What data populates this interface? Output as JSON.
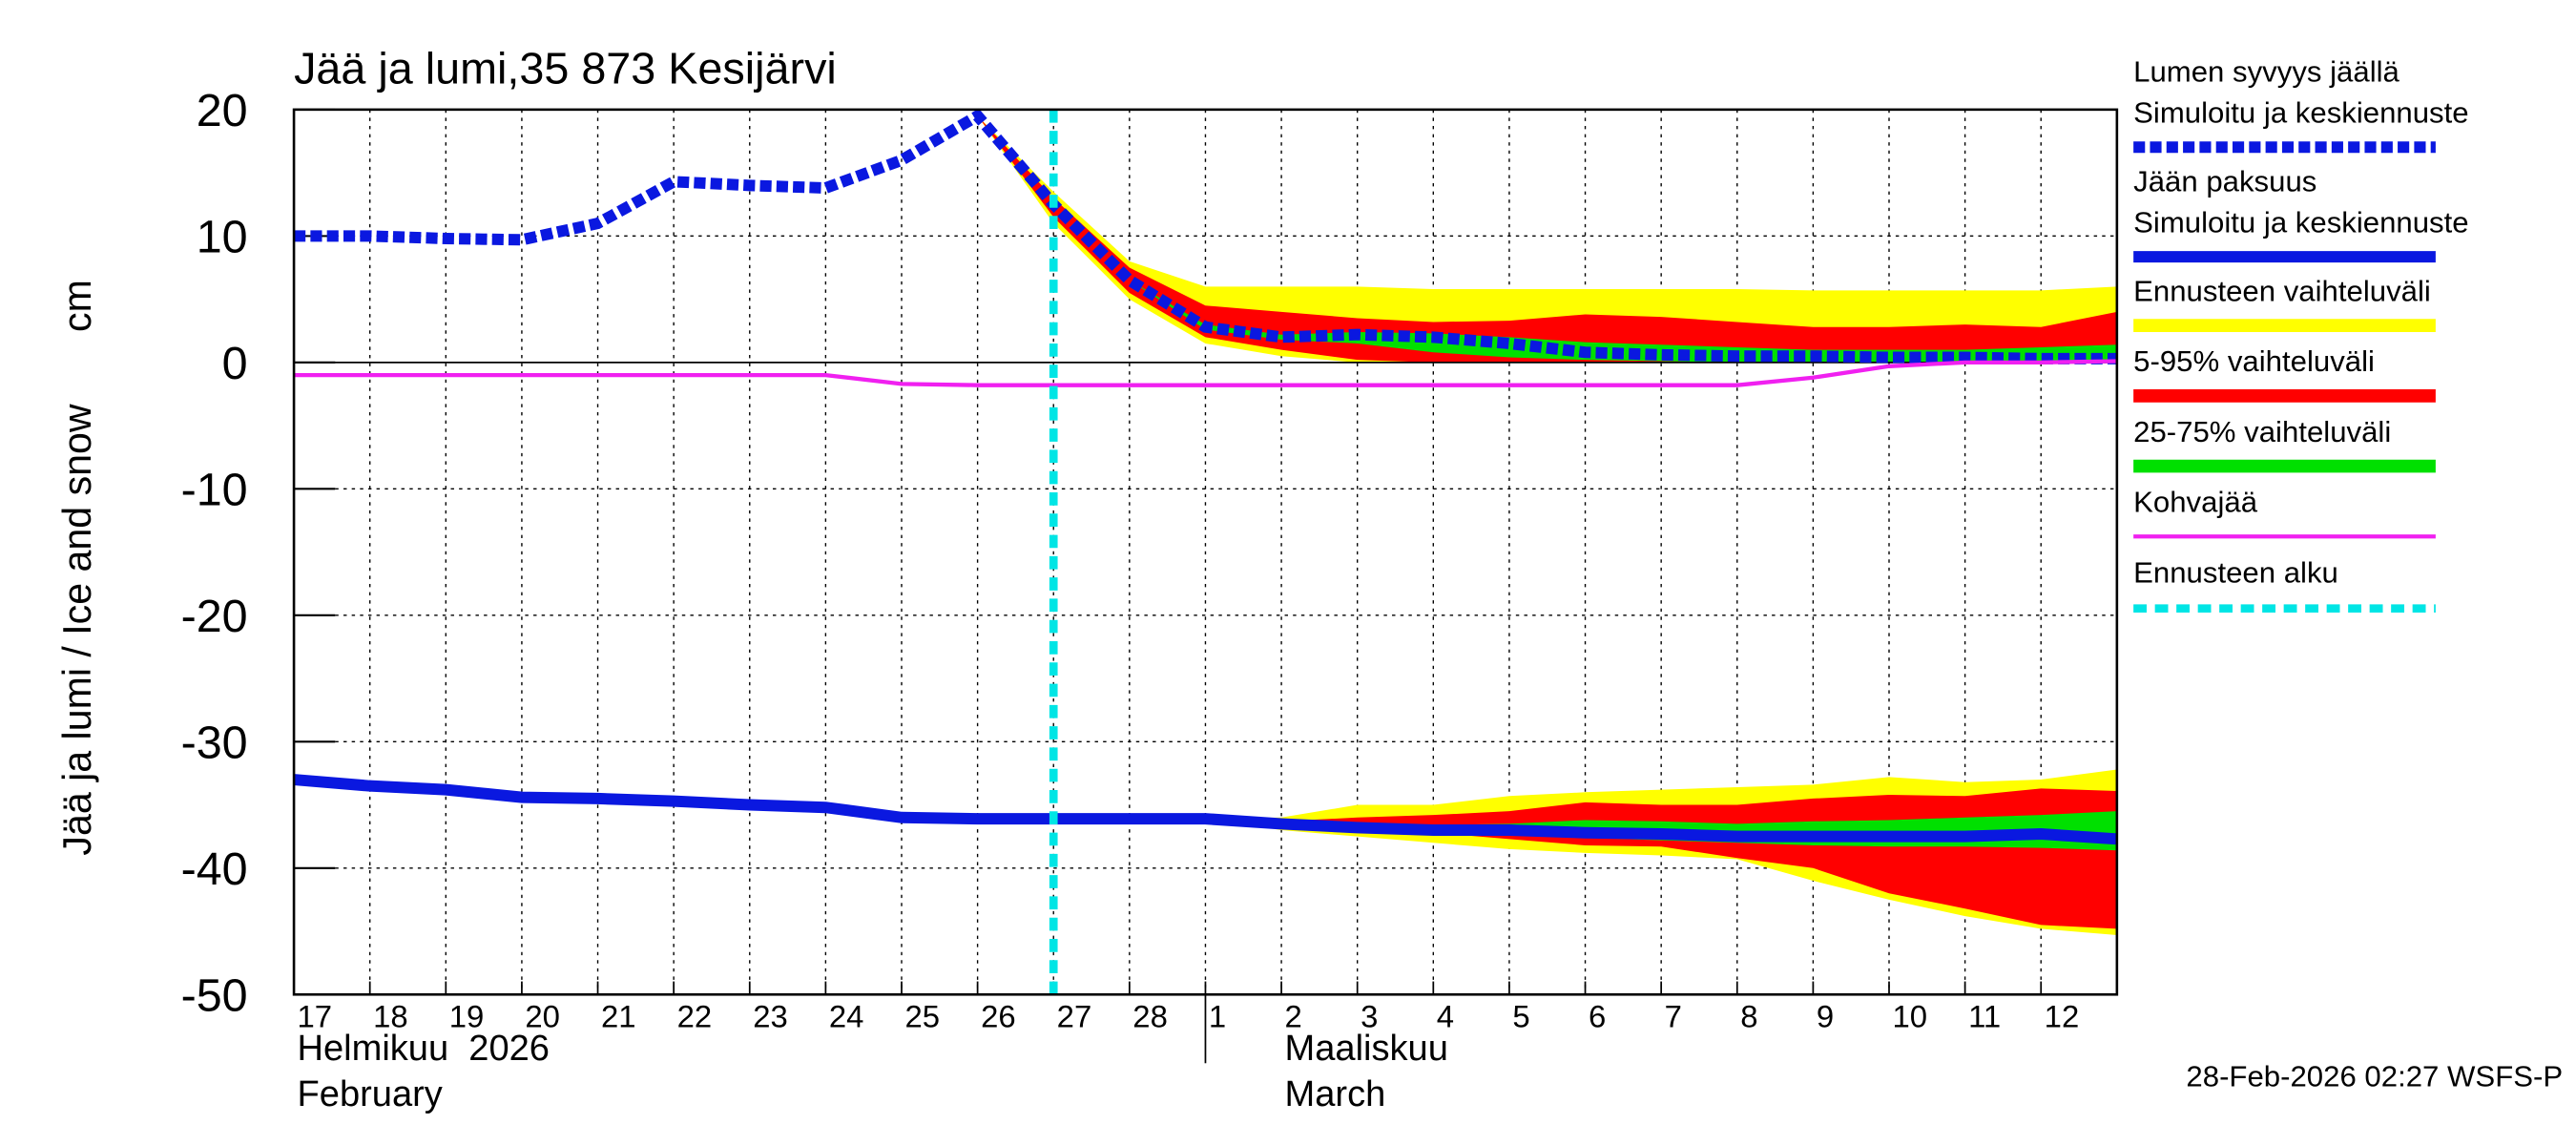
{
  "chart_data": {
    "type": "line",
    "title": "Jää ja lumi,35 873 Kesijärvi",
    "y_label": "Jää ja lumi / Ice and snow",
    "y_unit": "cm",
    "month_labels": [
      "Helmikuu  2026",
      "February",
      "Maaliskuu",
      "March"
    ],
    "footer": "28-Feb-2026 02:27 WSFS-P",
    "categories": [
      "17",
      "18",
      "19",
      "20",
      "21",
      "22",
      "23",
      "24",
      "25",
      "26",
      "27",
      "28",
      "1",
      "2",
      "3",
      "4",
      "5",
      "6",
      "7",
      "8",
      "9",
      "10",
      "11",
      "12",
      null
    ],
    "ylim": [
      -50,
      20
    ],
    "yticks": [
      20,
      10,
      0,
      -10,
      -20,
      -30,
      -40,
      -50
    ],
    "grid": true,
    "series": [
      {
        "name": "Lumen syvyys jäällä",
        "subname": "Simuloitu ja keskiennuste",
        "color": "#0a18e0",
        "dash": true,
        "values": [
          10,
          10,
          9.8,
          9.7,
          11,
          14.3,
          14,
          13.8,
          16,
          19.5,
          12.5,
          6.5,
          2.8,
          2,
          2.2,
          2,
          1.5,
          0.8,
          0.6,
          0.5,
          0.5,
          0.4,
          0.4,
          0.3,
          0.3
        ]
      },
      {
        "name": "Jään paksuus",
        "subname": "Simuloitu ja keskiennuste",
        "color": "#0a18e0",
        "dash": false,
        "values": [
          -33,
          -33.5,
          -33.8,
          -34.4,
          -34.5,
          -34.7,
          -35,
          -35.2,
          -36,
          -36.1,
          -36.1,
          -36.1,
          -36.1,
          -36.5,
          -36.8,
          -37,
          -37,
          -37.2,
          -37.3,
          -37.5,
          -37.5,
          -37.5,
          -37.5,
          -37.3,
          -37.7
        ]
      },
      {
        "name": "Kohvajää",
        "color": "#f020f0",
        "dash": false,
        "thin": true,
        "values": [
          -1,
          -1,
          -1,
          -1,
          -1,
          -1,
          -1,
          -1,
          -1.7,
          -1.8,
          -1.8,
          -1.8,
          -1.8,
          -1.8,
          -1.8,
          -1.8,
          -1.8,
          -1.8,
          -1.8,
          -1.8,
          -1.2,
          -0.3,
          0,
          0,
          0.1
        ]
      }
    ],
    "bands": [
      {
        "name": "Ennusteen vaihteluväli",
        "color": "#ffff00",
        "snow_high": [
          null,
          null,
          null,
          null,
          null,
          null,
          null,
          null,
          null,
          19.5,
          13.5,
          8,
          6,
          6,
          6,
          5.8,
          5.8,
          5.8,
          5.8,
          5.8,
          5.7,
          5.7,
          5.7,
          5.7,
          6
        ],
        "snow_low": [
          null,
          null,
          null,
          null,
          null,
          null,
          null,
          null,
          null,
          19.5,
          11,
          5,
          1.5,
          0.5,
          0,
          0,
          0,
          0,
          0,
          0,
          0,
          0,
          0,
          0,
          0
        ],
        "ice_high": [
          null,
          null,
          null,
          null,
          null,
          null,
          null,
          null,
          null,
          null,
          null,
          null,
          -36.1,
          -36,
          -35,
          -35,
          -34.3,
          -34,
          -33.8,
          -33.6,
          -33.4,
          -32.8,
          -33.2,
          -33,
          -32.2
        ],
        "ice_low": [
          null,
          null,
          null,
          null,
          null,
          null,
          null,
          null,
          null,
          null,
          null,
          null,
          -36.1,
          -37,
          -37.5,
          -38,
          -38.5,
          -38.8,
          -39,
          -39.3,
          -41,
          -42.5,
          -43.8,
          -44.8,
          -45.3
        ]
      },
      {
        "name": "5-95% vaihteluväli",
        "color": "#ff0000",
        "snow_high": [
          null,
          null,
          null,
          null,
          null,
          null,
          null,
          null,
          null,
          19.5,
          13,
          7.5,
          4.5,
          4,
          3.5,
          3.2,
          3.3,
          3.8,
          3.6,
          3.2,
          2.8,
          2.8,
          3,
          2.8,
          4
        ],
        "snow_low": [
          null,
          null,
          null,
          null,
          null,
          null,
          null,
          null,
          null,
          19.5,
          11.5,
          5.5,
          2,
          1,
          0.2,
          0,
          0,
          0,
          0,
          0,
          0,
          0,
          0,
          0,
          0
        ],
        "ice_high": [
          null,
          null,
          null,
          null,
          null,
          null,
          null,
          null,
          null,
          null,
          null,
          null,
          -36.1,
          -36.3,
          -36,
          -35.8,
          -35.5,
          -34.8,
          -35,
          -35,
          -34.5,
          -34.2,
          -34.3,
          -33.7,
          -33.9
        ],
        "ice_low": [
          null,
          null,
          null,
          null,
          null,
          null,
          null,
          null,
          null,
          null,
          null,
          null,
          -36.1,
          -36.6,
          -37,
          -37.2,
          -37.7,
          -38.2,
          -38.3,
          -39.2,
          -40,
          -42,
          -43.2,
          -44.5,
          -44.8
        ]
      },
      {
        "name": "25-75% vaihteluväli",
        "color": "#00e000",
        "snow_high": [
          null,
          null,
          null,
          null,
          null,
          null,
          null,
          null,
          null,
          19.5,
          12.5,
          6.5,
          3,
          2.2,
          2.4,
          2.3,
          2,
          1.6,
          1.4,
          1.2,
          1,
          1,
          1,
          1.2,
          1.4
        ],
        "snow_low": [
          null,
          null,
          null,
          null,
          null,
          null,
          null,
          null,
          null,
          19.5,
          12.5,
          6.5,
          2.6,
          1.8,
          1.5,
          0.8,
          0.4,
          0.2,
          0.1,
          0,
          0,
          0,
          0,
          0,
          0
        ],
        "ice_high": [
          null,
          null,
          null,
          null,
          null,
          null,
          null,
          null,
          null,
          null,
          null,
          null,
          -36.1,
          -36.3,
          -36.5,
          -36.6,
          -36.5,
          -36.2,
          -36.3,
          -36.5,
          -36.3,
          -36.2,
          -36,
          -35.8,
          -35.5
        ],
        "ice_low": [
          null,
          null,
          null,
          null,
          null,
          null,
          null,
          null,
          null,
          null,
          null,
          null,
          -36.1,
          -36.6,
          -36.9,
          -37.2,
          -37.4,
          -37.6,
          -37.8,
          -38,
          -38.2,
          -38.3,
          -38.3,
          -38.4,
          -38.6
        ]
      }
    ],
    "forecast_start": {
      "name": "Ennusteen alku",
      "color": "#00e5e5",
      "at": "27"
    }
  }
}
